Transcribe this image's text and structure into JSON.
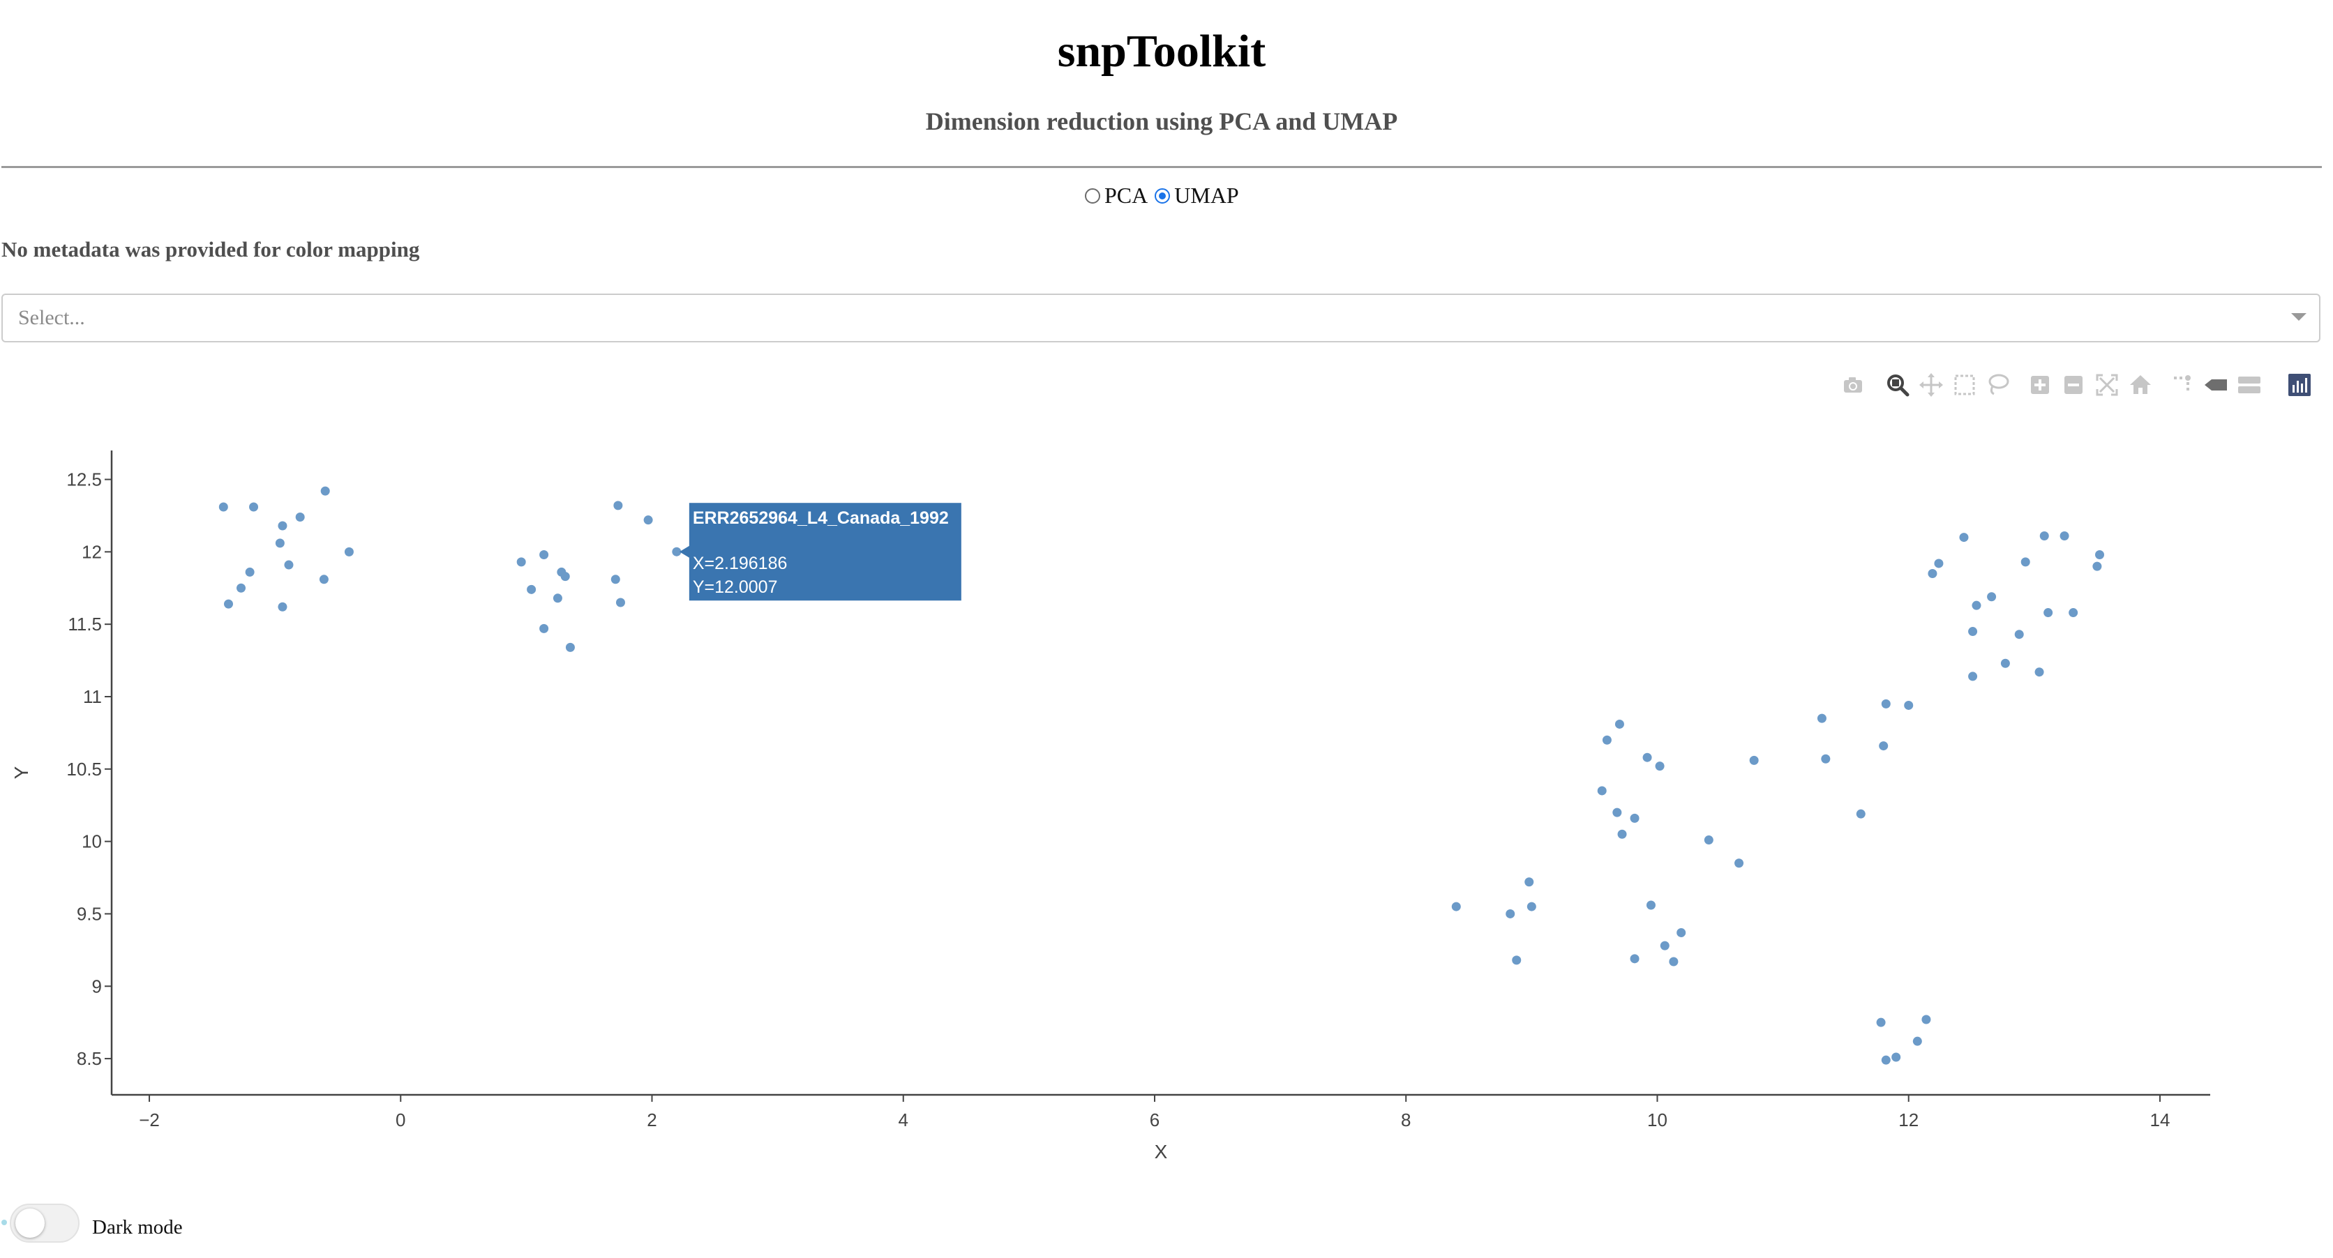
{
  "app": {
    "title": "snpToolkit",
    "subtitle": "Dimension reduction using PCA and UMAP",
    "metadata_note": "No metadata was provided for color mapping",
    "select_placeholder": "Select...",
    "dark_mode_label": "Dark mode",
    "dark_mode_on": false
  },
  "method_selector": {
    "options": [
      {
        "label": "PCA",
        "checked": false
      },
      {
        "label": "UMAP",
        "checked": true
      }
    ]
  },
  "modebar": {
    "buttons": [
      "camera-icon",
      "zoom-icon",
      "pan-icon",
      "box-select-icon",
      "lasso-select-icon",
      "zoom-in-icon",
      "zoom-out-icon",
      "autoscale-icon",
      "reset-axes-icon",
      "spike-lines-icon",
      "hover-closest-icon",
      "hover-compare-icon",
      "plotly-logo-icon"
    ],
    "active": "zoom-icon"
  },
  "colors": {
    "marker": "#6b9ac8",
    "hover_bg": "#3a75b0",
    "axis": "#444444"
  },
  "hover": {
    "sample": "ERR2652964_L4_Canada_1992",
    "x_text": "X=2.196186",
    "y_text": "Y=12.0007"
  },
  "chart_data": {
    "type": "scatter",
    "title": "",
    "xlabel": "X",
    "ylabel": "Y",
    "xlim": [
      -2.3,
      14.4
    ],
    "ylim": [
      8.25,
      12.7
    ],
    "xticks": [
      -2,
      0,
      2,
      4,
      6,
      8,
      10,
      12,
      14
    ],
    "xtick_labels": [
      "−2",
      "0",
      "2",
      "4",
      "6",
      "8",
      "10",
      "12",
      "14"
    ],
    "yticks": [
      8.5,
      9,
      9.5,
      10,
      10.5,
      11,
      11.5,
      12,
      12.5
    ],
    "ytick_labels": [
      "8.5",
      "9",
      "9.5",
      "10",
      "10.5",
      "11",
      "11.5",
      "12",
      "12.5"
    ],
    "grid": false,
    "points": [
      [
        -1.41,
        12.31
      ],
      [
        -1.17,
        12.31
      ],
      [
        -0.6,
        12.42
      ],
      [
        -0.8,
        12.24
      ],
      [
        -0.94,
        12.18
      ],
      [
        -0.96,
        12.06
      ],
      [
        -0.41,
        12.0
      ],
      [
        -1.2,
        11.86
      ],
      [
        -0.89,
        11.91
      ],
      [
        -0.61,
        11.81
      ],
      [
        -1.27,
        11.75
      ],
      [
        -1.37,
        11.64
      ],
      [
        -0.94,
        11.62
      ],
      [
        0.96,
        11.93
      ],
      [
        1.14,
        11.98
      ],
      [
        1.28,
        11.86
      ],
      [
        1.31,
        11.83
      ],
      [
        1.04,
        11.74
      ],
      [
        1.25,
        11.68
      ],
      [
        1.14,
        11.47
      ],
      [
        1.35,
        11.34
      ],
      [
        1.73,
        12.32
      ],
      [
        1.97,
        12.22
      ],
      [
        2.196186,
        12.0007
      ],
      [
        1.71,
        11.81
      ],
      [
        1.75,
        11.65
      ],
      [
        8.4,
        9.55
      ],
      [
        8.83,
        9.5
      ],
      [
        8.98,
        9.72
      ],
      [
        9.0,
        9.55
      ],
      [
        8.88,
        9.18
      ],
      [
        9.56,
        10.35
      ],
      [
        9.6,
        10.7
      ],
      [
        9.7,
        10.81
      ],
      [
        9.68,
        10.2
      ],
      [
        9.82,
        10.16
      ],
      [
        9.72,
        10.05
      ],
      [
        9.92,
        10.58
      ],
      [
        10.02,
        10.52
      ],
      [
        9.95,
        9.56
      ],
      [
        10.19,
        9.37
      ],
      [
        10.06,
        9.28
      ],
      [
        9.82,
        9.19
      ],
      [
        10.13,
        9.17
      ],
      [
        10.41,
        10.01
      ],
      [
        10.65,
        9.85
      ],
      [
        10.77,
        10.56
      ],
      [
        11.31,
        10.85
      ],
      [
        11.34,
        10.57
      ],
      [
        11.62,
        10.19
      ],
      [
        11.82,
        10.95
      ],
      [
        11.8,
        10.66
      ],
      [
        12.0,
        10.94
      ],
      [
        11.78,
        8.75
      ],
      [
        12.14,
        8.77
      ],
      [
        12.07,
        8.62
      ],
      [
        11.82,
        8.49
      ],
      [
        11.9,
        8.51
      ],
      [
        12.19,
        11.85
      ],
      [
        12.24,
        11.92
      ],
      [
        12.44,
        12.1
      ],
      [
        12.54,
        11.63
      ],
      [
        12.51,
        11.45
      ],
      [
        12.66,
        11.69
      ],
      [
        12.51,
        11.14
      ],
      [
        12.77,
        11.23
      ],
      [
        12.88,
        11.43
      ],
      [
        12.93,
        11.93
      ],
      [
        13.08,
        12.11
      ],
      [
        13.24,
        12.11
      ],
      [
        13.11,
        11.58
      ],
      [
        13.04,
        11.17
      ],
      [
        13.31,
        11.58
      ],
      [
        13.52,
        11.98
      ],
      [
        13.5,
        11.9
      ]
    ]
  }
}
